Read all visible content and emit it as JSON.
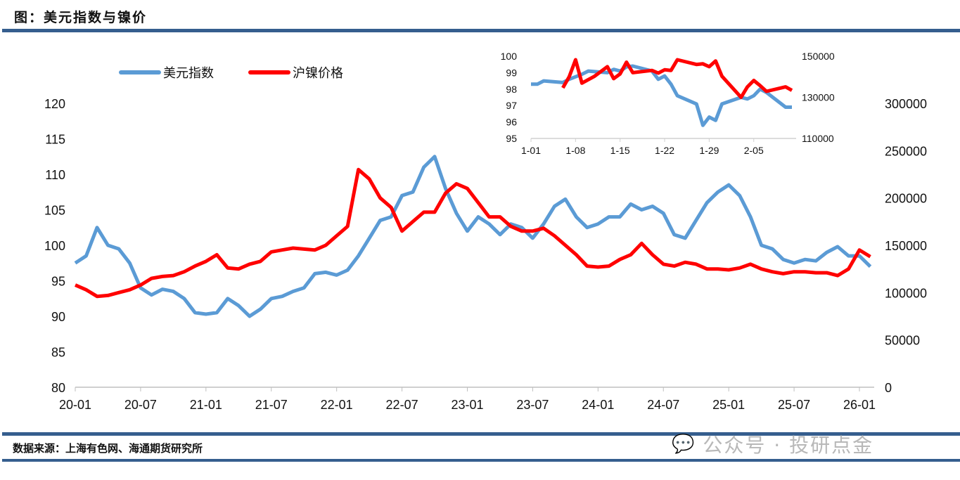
{
  "title": "图：美元指数与镍价",
  "source": "数据来源：上海有色网、海通期货研究所",
  "watermark": "公众号 · 投研点金",
  "chart_data": [
    {
      "type": "line",
      "title": "美元指数与镍价",
      "x_ticks": [
        "20-01",
        "20-07",
        "21-01",
        "21-07",
        "22-01",
        "22-07",
        "23-01",
        "23-07",
        "24-01",
        "24-07",
        "25-01",
        "25-07",
        "26-01"
      ],
      "left_axis": {
        "ylim": [
          80,
          120
        ],
        "ticks": [
          "80",
          "85",
          "90",
          "95",
          "100",
          "105",
          "110",
          "115",
          "120"
        ]
      },
      "right_axis": {
        "ylim": [
          0,
          300000
        ],
        "ticks": [
          "0",
          "50000",
          "100000",
          "150000",
          "200000",
          "250000",
          "300000"
        ]
      },
      "legend": {
        "placement": "top-left",
        "entries": [
          "美元指数",
          "沪镍价格"
        ]
      },
      "x_start": "2020-01",
      "x_step": "month",
      "series": [
        {
          "name": "美元指数",
          "axis": "left",
          "color": "#5B9BD5",
          "values": [
            97.5,
            98.5,
            102.5,
            100,
            99.5,
            97.5,
            94,
            93,
            93.8,
            93.5,
            92.5,
            90.5,
            90.3,
            90.5,
            92.5,
            91.5,
            90,
            91,
            92.5,
            92.8,
            93.5,
            94,
            96,
            96.2,
            95.8,
            96.5,
            98.5,
            101,
            103.5,
            104,
            107,
            107.5,
            111,
            112.5,
            108,
            104.5,
            102,
            104,
            103,
            101.5,
            103,
            102.5,
            101,
            103,
            105.5,
            106.5,
            104,
            102.5,
            103,
            104,
            104,
            105.8,
            105,
            105.5,
            104.5,
            101.5,
            101,
            103.5,
            106,
            107.5,
            108.5,
            107,
            104,
            100,
            99.5,
            98,
            97.5,
            98,
            97.8,
            99,
            99.8,
            98.5,
            98.5,
            97
          ]
        },
        {
          "name": "沪镍价格",
          "axis": "right",
          "color": "#FF0000",
          "values": [
            108000,
            103000,
            96000,
            97000,
            100000,
            103000,
            108000,
            115000,
            117000,
            118000,
            122000,
            128000,
            133000,
            140000,
            126000,
            125000,
            130000,
            133000,
            143000,
            145000,
            147000,
            146000,
            145000,
            150000,
            160000,
            170000,
            230000,
            220000,
            200000,
            190000,
            165000,
            175000,
            185000,
            185000,
            205000,
            215000,
            210000,
            195000,
            180000,
            180000,
            170000,
            165000,
            165000,
            168000,
            160000,
            150000,
            140000,
            128000,
            127000,
            128000,
            135000,
            140000,
            152000,
            140000,
            130000,
            128000,
            132000,
            130000,
            125000,
            125000,
            124000,
            126000,
            130000,
            125000,
            122000,
            120000,
            122000,
            122000,
            121000,
            121000,
            118000,
            125000,
            145000,
            138000
          ]
        }
      ]
    },
    {
      "type": "line",
      "title": "inset",
      "x_ticks": [
        "1-01",
        "1-08",
        "1-15",
        "1-22",
        "1-29",
        "2-05"
      ],
      "left_axis": {
        "ylim": [
          95,
          100
        ],
        "ticks": [
          "95",
          "96",
          "97",
          "98",
          "99",
          "100"
        ]
      },
      "right_axis": {
        "ylim": [
          110000,
          150000
        ],
        "ticks": [
          "110000",
          "130000",
          "150000"
        ]
      },
      "series": [
        {
          "name": "美元指数",
          "axis": "left",
          "color": "#5B9BD5",
          "day": [
            0,
            1,
            2,
            5,
            6,
            8,
            9,
            12,
            13,
            14,
            15,
            16,
            19,
            20,
            21,
            22,
            23,
            26,
            27,
            28,
            29,
            30,
            33,
            34,
            35,
            36,
            37,
            40,
            41
          ],
          "values": [
            98.3,
            98.3,
            98.5,
            98.4,
            98.6,
            98.9,
            99.1,
            99.0,
            99.2,
            99.1,
            99.35,
            99.4,
            99.1,
            98.6,
            98.8,
            98.3,
            97.6,
            97.1,
            95.8,
            96.3,
            96.1,
            97.1,
            97.5,
            97.4,
            97.6,
            98.0,
            97.8,
            96.9,
            96.9
          ]
        },
        {
          "name": "沪镍价格",
          "axis": "right",
          "color": "#FF0000",
          "day": [
            5,
            6,
            7,
            8,
            9,
            10,
            12,
            13,
            14,
            15,
            16,
            19,
            20,
            21,
            22,
            23,
            26,
            27,
            28,
            29,
            30,
            33,
            34,
            35,
            36,
            37,
            40,
            41
          ],
          "values": [
            134600,
            140000,
            148300,
            136900,
            138600,
            140300,
            144900,
            139100,
            141400,
            147100,
            142000,
            143100,
            141800,
            143400,
            143100,
            148300,
            146000,
            146300,
            144900,
            147700,
            140300,
            130000,
            135100,
            138200,
            135700,
            132900,
            135100,
            133400
          ]
        }
      ]
    }
  ]
}
